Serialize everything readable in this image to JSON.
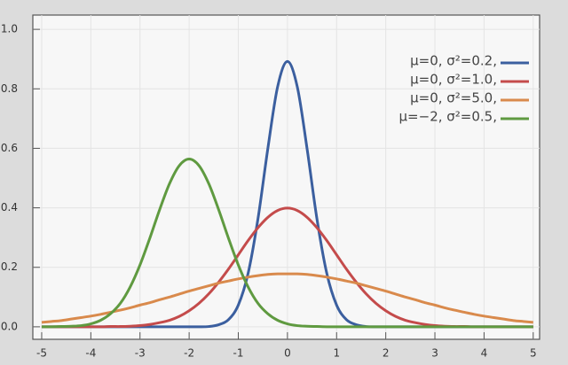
{
  "chart_data": {
    "type": "line",
    "x": [
      -5,
      -4.8,
      -4.6,
      -4.4,
      -4.2,
      -4,
      -3.8,
      -3.6,
      -3.4,
      -3.2,
      -3,
      -2.8,
      -2.6,
      -2.4,
      -2.2,
      -2,
      -1.8,
      -1.6,
      -1.4,
      -1.2,
      -1,
      -0.8,
      -0.6,
      -0.4,
      -0.2,
      0,
      0.2,
      0.4,
      0.6,
      0.8,
      1,
      1.2,
      1.4,
      1.6,
      1.8,
      2,
      2.2,
      2.4,
      2.6,
      2.8,
      3,
      3.2,
      3.4,
      3.6,
      3.8,
      4,
      4.2,
      4.4,
      4.6,
      4.8,
      5
    ],
    "series": [
      {
        "name": "μ=0,   σ²=0.2,",
        "color": "#3b5f9f",
        "values": [
          0,
          0,
          0,
          0,
          0,
          0,
          0,
          0,
          0,
          0,
          0,
          0,
          0,
          0,
          0,
          0,
          0,
          0.001,
          0.007,
          0.024,
          0.073,
          0.18,
          0.363,
          0.598,
          0.807,
          0.892,
          0.807,
          0.598,
          0.363,
          0.18,
          0.073,
          0.024,
          0.007,
          0.001,
          0,
          0,
          0,
          0,
          0,
          0,
          0,
          0,
          0,
          0,
          0,
          0,
          0,
          0,
          0,
          0,
          0
        ]
      },
      {
        "name": "μ=0,   σ²=1.0,",
        "color": "#c44b4b",
        "values": [
          0,
          0,
          0,
          0,
          0,
          0,
          0,
          0.001,
          0.001,
          0.002,
          0.004,
          0.008,
          0.014,
          0.022,
          0.035,
          0.054,
          0.079,
          0.111,
          0.15,
          0.194,
          0.242,
          0.29,
          0.333,
          0.368,
          0.391,
          0.399,
          0.391,
          0.368,
          0.333,
          0.29,
          0.242,
          0.194,
          0.15,
          0.111,
          0.079,
          0.054,
          0.035,
          0.022,
          0.014,
          0.008,
          0.004,
          0.002,
          0.001,
          0.001,
          0,
          0,
          0,
          0,
          0,
          0,
          0
        ]
      },
      {
        "name": "μ=0,   σ²=5.0,",
        "color": "#d98a4c",
        "values": [
          0.015,
          0.018,
          0.021,
          0.026,
          0.031,
          0.036,
          0.042,
          0.049,
          0.056,
          0.064,
          0.073,
          0.081,
          0.091,
          0.1,
          0.11,
          0.12,
          0.129,
          0.138,
          0.147,
          0.154,
          0.161,
          0.167,
          0.172,
          0.176,
          0.178,
          0.178,
          0.178,
          0.176,
          0.172,
          0.167,
          0.161,
          0.154,
          0.147,
          0.138,
          0.129,
          0.12,
          0.11,
          0.1,
          0.091,
          0.081,
          0.073,
          0.064,
          0.056,
          0.049,
          0.042,
          0.036,
          0.031,
          0.026,
          0.021,
          0.018,
          0.015
        ]
      },
      {
        "name": "μ=−2, σ²=0.5,",
        "color": "#5f9a40",
        "values": [
          0,
          0,
          0.001,
          0.002,
          0.004,
          0.01,
          0.022,
          0.044,
          0.079,
          0.134,
          0.208,
          0.298,
          0.394,
          0.481,
          0.542,
          0.564,
          0.542,
          0.481,
          0.394,
          0.298,
          0.208,
          0.134,
          0.079,
          0.044,
          0.022,
          0.01,
          0.004,
          0.002,
          0.001,
          0,
          0,
          0,
          0,
          0,
          0,
          0,
          0,
          0,
          0,
          0,
          0,
          0,
          0,
          0,
          0,
          0,
          0,
          0,
          0,
          0,
          0
        ]
      }
    ],
    "xlim": [
      -5.18,
      5.13
    ],
    "ylim": [
      -0.042,
      1.048
    ],
    "xticks": [
      -5,
      -4,
      -3,
      -2,
      -1,
      0,
      1,
      2,
      3,
      4,
      5
    ],
    "yticks": [
      {
        "value": 0,
        "label": "0.0"
      },
      0.2,
      0.4,
      0.6,
      0.8,
      {
        "value": 1,
        "label": "1.0"
      }
    ],
    "grid": true,
    "legend": "upper right"
  }
}
